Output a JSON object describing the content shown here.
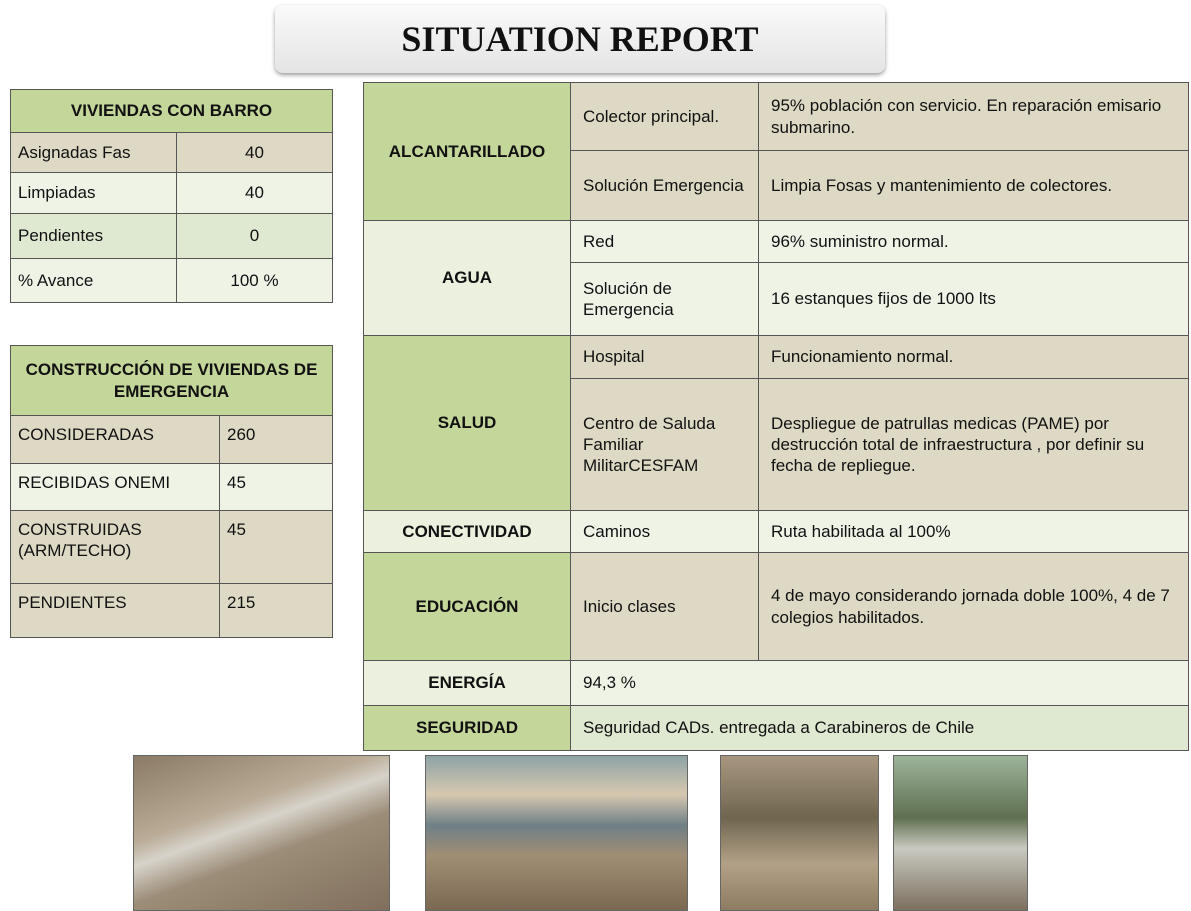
{
  "title": "SITUATION REPORT",
  "barro": {
    "header": "VIVIENDAS CON BARRO",
    "rows": [
      [
        "Asignadas Fas",
        "40"
      ],
      [
        "Limpiadas",
        "40"
      ],
      [
        "Pendientes",
        "0"
      ],
      [
        "% Avance",
        "100 %"
      ]
    ]
  },
  "construccion": {
    "header": "CONSTRUCCIÓN DE VIVIENDAS DE EMERGENCIA",
    "rows": [
      [
        "CONSIDERADAS",
        "260"
      ],
      [
        "RECIBIDAS ONEMI",
        "45"
      ],
      [
        "CONSTRUIDAS (ARM/TECHO)",
        "45"
      ],
      [
        "PENDIENTES",
        "215"
      ]
    ]
  },
  "report": {
    "sections": [
      {
        "label": "ALCANTARILLADO",
        "rows": [
          {
            "item": "Colector principal.",
            "detail": "95% población con servicio. En reparación emisario submarino."
          },
          {
            "item": "Solución Emergencia",
            "detail": "Limpia Fosas y mantenimiento de colectores."
          }
        ]
      },
      {
        "label": "AGUA",
        "rows": [
          {
            "item": "Red",
            "detail": "96% suministro normal."
          },
          {
            "item": "Solución de Emergencia",
            "detail": "16  estanques  fijos de 1000 lts"
          }
        ]
      },
      {
        "label": "SALUD",
        "rows": [
          {
            "item": "Hospital",
            "detail": "Funcionamiento normal."
          },
          {
            "item": "Centro de Saluda Familiar MilitarCESFAM",
            "detail": "Despliegue de patrullas medicas (PAME) por destrucción total de infraestructura , por definir su fecha de repliegue."
          }
        ]
      },
      {
        "label": "CONECTIVIDAD",
        "rows": [
          {
            "item": "Caminos",
            "detail": "Ruta habilitada al 100%"
          }
        ]
      },
      {
        "label": "EDUCACIÓN",
        "rows": [
          {
            "item": "Inicio clases",
            "detail": "4 de mayo considerando jornada doble 100%, 4 de 7 colegios habilitados."
          }
        ]
      },
      {
        "label": "ENERGÍA",
        "detail": "94,3 %"
      },
      {
        "label": "SEGURIDAD",
        "detail": "Seguridad CADs. entregada a Carabineros  de Chile"
      }
    ]
  }
}
